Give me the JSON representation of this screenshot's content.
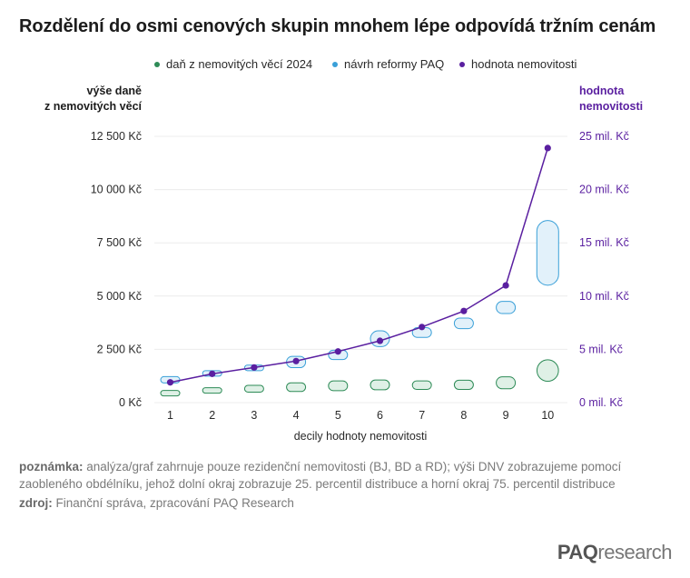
{
  "title": "Rozdělení do osmi cenových skupin mnohem lépe odpovídá tržním cenám",
  "legend": [
    {
      "label": "daň z nemovitých věcí 2024",
      "color": "#2e8b57"
    },
    {
      "label": "návrh reformy PAQ",
      "color": "#3aa0d8"
    },
    {
      "label": "hodnota nemovitosti",
      "color": "#5a1fa0"
    }
  ],
  "axis_titles": {
    "left_line1": "výše daně",
    "left_line2": "z nemovitých věcí",
    "right_line1": "hodnota",
    "right_line2": "nemovitosti"
  },
  "note_label": "poznámka:",
  "note_text": " analýza/graf zahrnuje pouze rezidenční nemovitosti (BJ, BD a RD); výši DNV zobrazujeme pomocí zaobleného obdélníku, jehož dolní okraj zobrazuje 25. percentil distribuce a horní okraj 75. percentil distribuce",
  "source_label": "zdroj:",
  "source_text": " Finanční správa, zpracování PAQ Research",
  "brand": {
    "strong": "PAQ",
    "light": "research"
  },
  "chart_data": {
    "type": "line",
    "xlabel": "decily hodnoty nemovitosti",
    "categories": [
      "1",
      "2",
      "3",
      "4",
      "5",
      "6",
      "7",
      "8",
      "9",
      "10"
    ],
    "left_axis": {
      "ticks": [
        0,
        2500,
        5000,
        7500,
        10000,
        12500
      ],
      "tick_labels": [
        "0 Kč",
        "2 500 Kč",
        "5 000 Kč",
        "7 500 Kč",
        "10 000 Kč",
        "12 500 Kč"
      ],
      "ylim": [
        0,
        12500
      ]
    },
    "right_axis": {
      "ticks": [
        0,
        5,
        10,
        15,
        20,
        25
      ],
      "tick_labels": [
        "0 mil. Kč",
        "5 mil. Kč",
        "10 mil. Kč",
        "15 mil. Kč",
        "20 mil. Kč",
        "25 mil. Kč"
      ],
      "ylim": [
        0,
        25
      ]
    },
    "grid": true,
    "series": [
      {
        "name": "daň z nemovitých věcí 2024",
        "kind": "range",
        "axis": "left",
        "color": "#2e8b57",
        "fill": "#dff0e6",
        "p25": [
          370,
          460,
          490,
          520,
          560,
          600,
          620,
          620,
          650,
          1000
        ],
        "p75": [
          570,
          700,
          810,
          930,
          1020,
          1060,
          1020,
          1050,
          1210,
          2010
        ]
      },
      {
        "name": "návrh reformy PAQ",
        "kind": "range",
        "axis": "left",
        "color": "#3aa0d8",
        "fill": "#e2f1fa",
        "p25": [
          920,
          1320,
          1500,
          1640,
          2020,
          2630,
          3060,
          3470,
          4180,
          5510
        ],
        "p75": [
          1220,
          1500,
          1760,
          2170,
          2460,
          3370,
          3520,
          3970,
          4750,
          8550
        ]
      },
      {
        "name": "hodnota nemovitosti",
        "kind": "line",
        "axis": "right",
        "color": "#5a1fa0",
        "values": [
          1.9,
          2.7,
          3.3,
          3.9,
          4.8,
          5.8,
          7.1,
          8.6,
          11.0,
          23.9
        ]
      }
    ]
  }
}
